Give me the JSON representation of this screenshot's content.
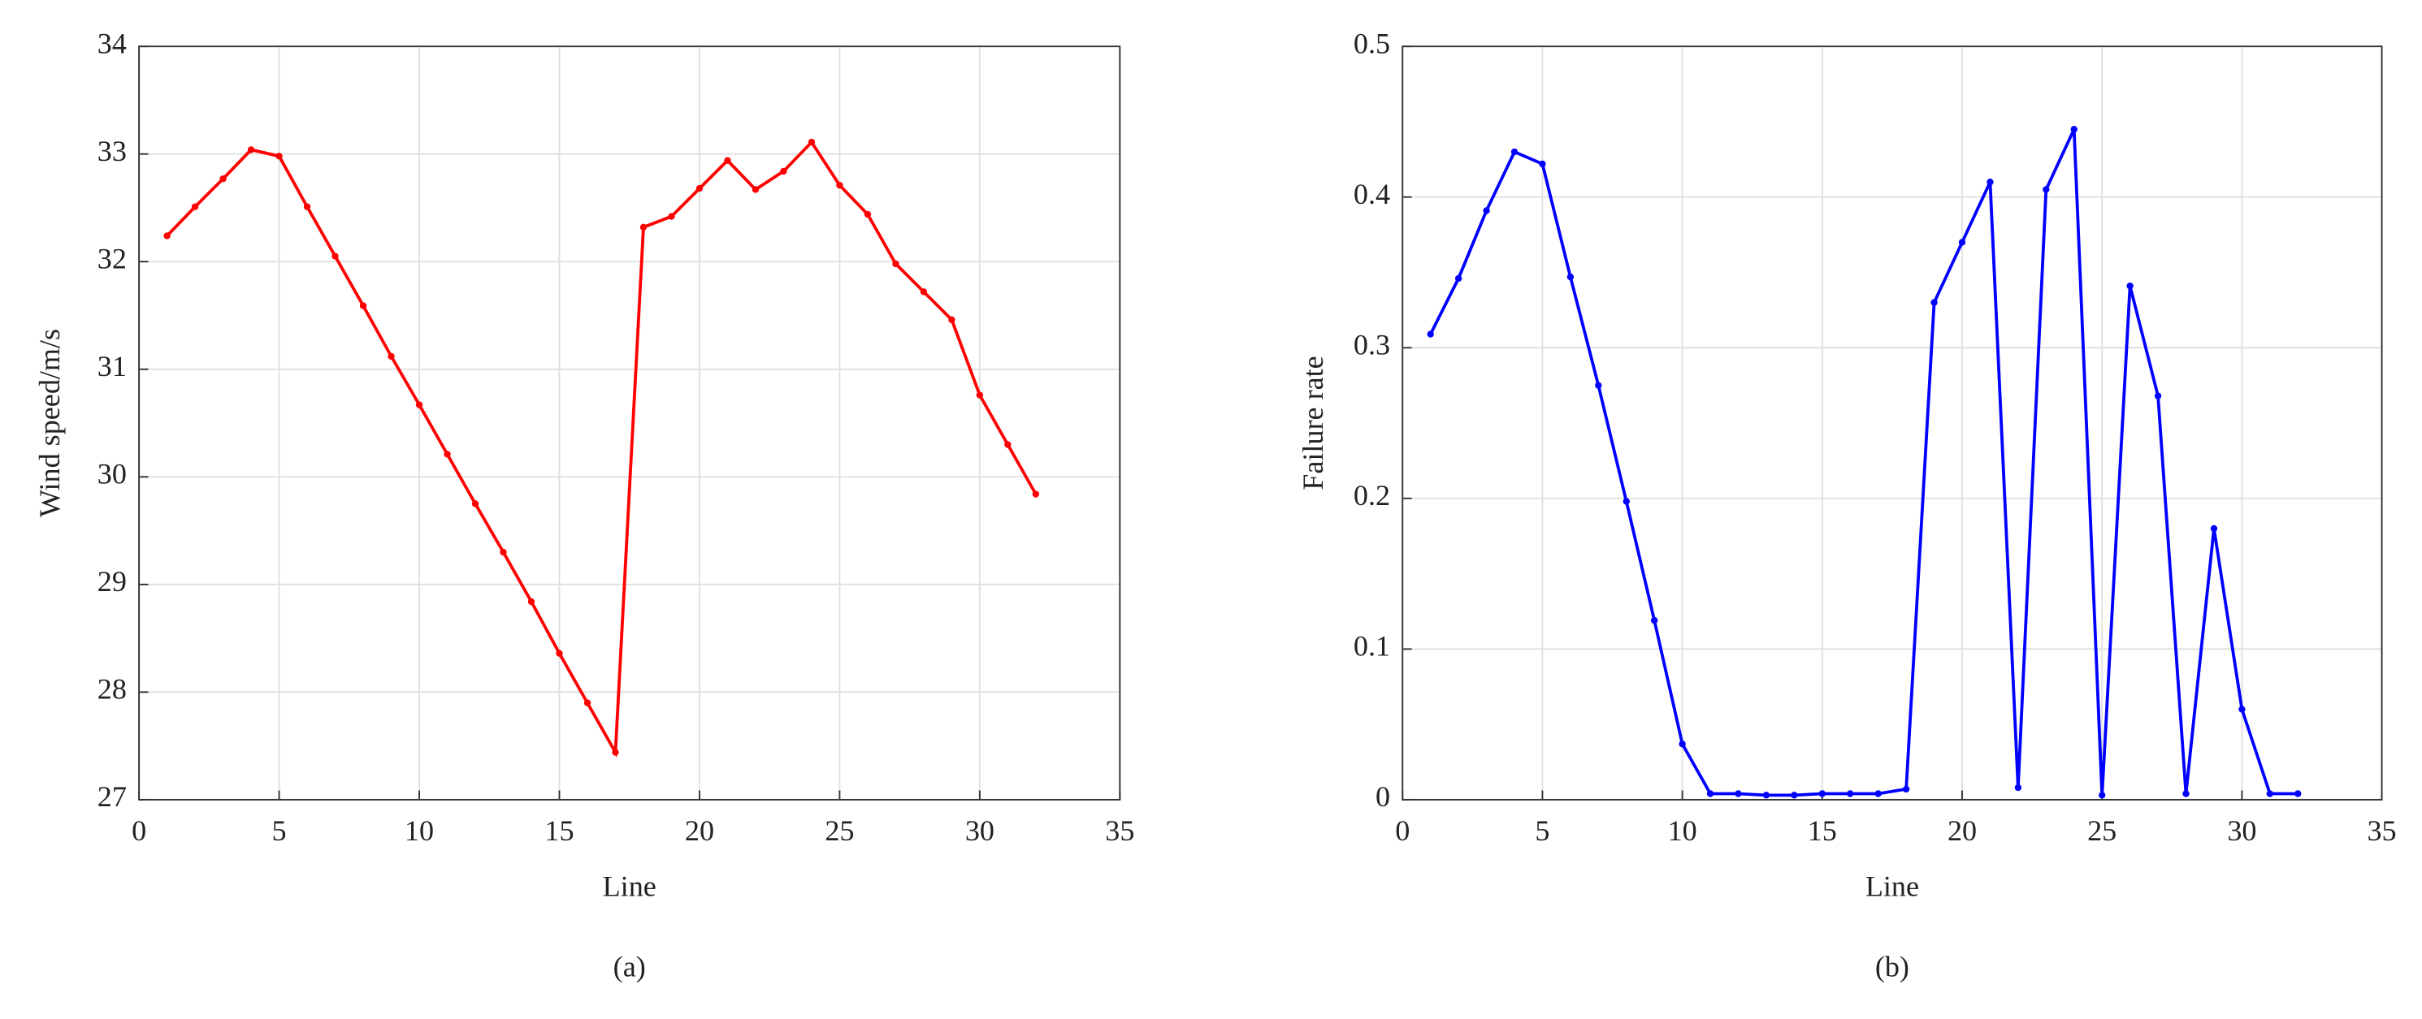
{
  "chart_data": [
    {
      "type": "line",
      "label": "(a)",
      "x_label": "Line",
      "y_label": "Wind speed/m/s",
      "x": [
        1,
        2,
        3,
        4,
        5,
        6,
        7,
        8,
        9,
        10,
        11,
        12,
        13,
        14,
        15,
        16,
        17,
        18,
        19,
        20,
        21,
        22,
        23,
        24,
        25,
        26,
        27,
        28,
        29,
        30,
        31,
        32
      ],
      "series": [
        {
          "color": "#ff0000",
          "values": [
            32.24,
            32.51,
            32.77,
            33.04,
            32.98,
            32.51,
            32.05,
            31.59,
            31.12,
            30.67,
            30.21,
            29.75,
            29.3,
            28.84,
            28.36,
            27.9,
            27.44,
            32.32,
            32.42,
            32.68,
            32.94,
            32.67,
            32.84,
            33.11,
            32.71,
            32.44,
            31.98,
            31.72,
            31.46,
            30.76,
            30.3,
            29.84
          ]
        }
      ],
      "xlim": [
        0,
        35
      ],
      "xticks": [
        0,
        5,
        10,
        15,
        20,
        25,
        30,
        35
      ],
      "ylim": [
        27,
        34
      ],
      "yticks": [
        27,
        28,
        29,
        30,
        31,
        32,
        33,
        34
      ],
      "grid": true
    },
    {
      "type": "line",
      "label": "(b)",
      "x_label": "Line",
      "y_label": "Failure rate",
      "x": [
        1,
        2,
        3,
        4,
        5,
        6,
        7,
        8,
        9,
        10,
        11,
        12,
        13,
        14,
        15,
        16,
        17,
        18,
        19,
        20,
        21,
        22,
        23,
        24,
        25,
        26,
        27,
        28,
        29,
        30,
        31,
        32
      ],
      "series": [
        {
          "color": "#0000ff",
          "values": [
            0.309,
            0.346,
            0.391,
            0.43,
            0.422,
            0.347,
            0.275,
            0.198,
            0.119,
            0.037,
            0.004,
            0.004,
            0.003,
            0.003,
            0.004,
            0.004,
            0.004,
            0.007,
            0.33,
            0.37,
            0.41,
            0.008,
            0.405,
            0.445,
            0.003,
            0.341,
            0.268,
            0.004,
            0.18,
            0.06,
            0.004,
            0.004
          ]
        }
      ],
      "xlim": [
        0,
        35
      ],
      "xticks": [
        0,
        5,
        10,
        15,
        20,
        25,
        30,
        35
      ],
      "ylim": [
        0,
        0.5
      ],
      "yticks": [
        0,
        0.1,
        0.2,
        0.3,
        0.4,
        0.5
      ],
      "grid": true
    }
  ]
}
